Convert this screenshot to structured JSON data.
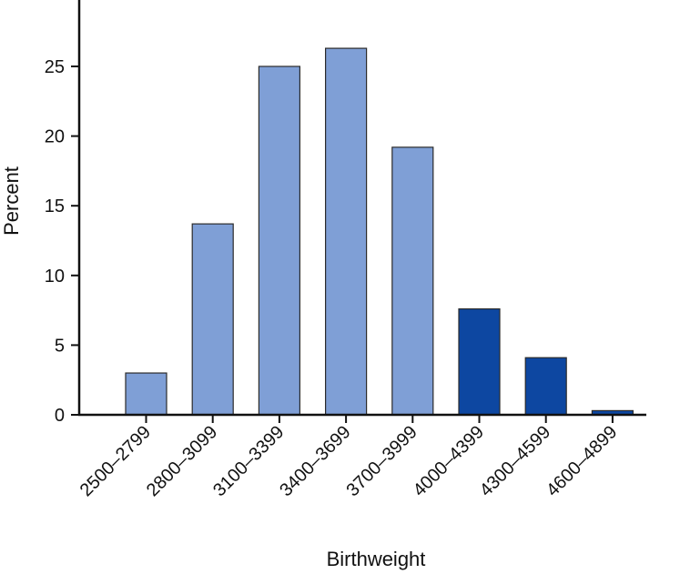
{
  "chart_data": {
    "type": "bar",
    "title": "",
    "xlabel": "Birthweight",
    "ylabel": "Percent",
    "ylim": [
      0,
      30
    ],
    "yticks": [
      0,
      5,
      10,
      15,
      20,
      25
    ],
    "grid": false,
    "categories": [
      "2500–2799",
      "2800–3099",
      "3100–3399",
      "3400–3699",
      "3700–3999",
      "4000–4399",
      "4300–4599",
      "4600–4899"
    ],
    "values": [
      3.0,
      13.7,
      25.0,
      26.3,
      19.2,
      7.6,
      4.1,
      0.3
    ],
    "bar_colors": [
      "#7f9fd6",
      "#7f9fd6",
      "#7f9fd6",
      "#7f9fd6",
      "#7f9fd6",
      "#0d47a1",
      "#0d47a1",
      "#0d47a1"
    ]
  }
}
